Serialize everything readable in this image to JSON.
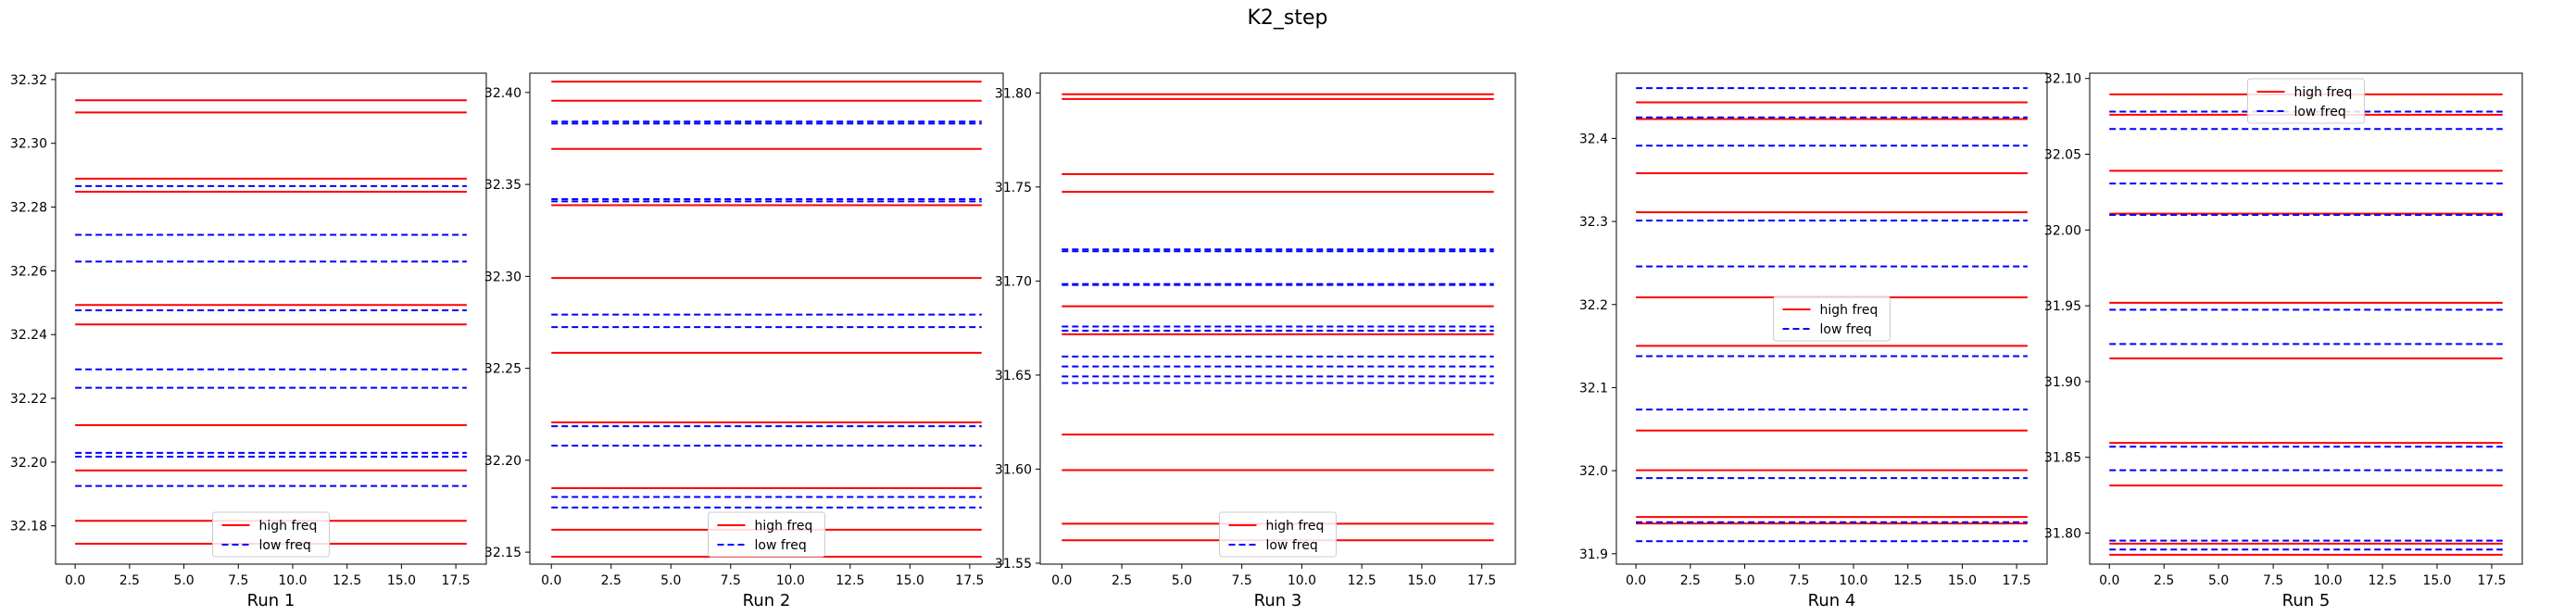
{
  "figure": {
    "title": "K2_step"
  },
  "chart_data": [
    {
      "type": "line",
      "xlabel": "Run 1",
      "xlim": [
        -0.9,
        18.9
      ],
      "ylim": [
        32.168,
        32.322
      ],
      "x_ticks": [
        0.0,
        2.5,
        5.0,
        7.5,
        10.0,
        12.5,
        15.0,
        17.5
      ],
      "x_tick_labels": [
        "0.0",
        "2.5",
        "5.0",
        "7.5",
        "10.0",
        "12.5",
        "15.0",
        "17.5"
      ],
      "y_ticks": [
        32.18,
        32.2,
        32.22,
        32.24,
        32.26,
        32.28,
        32.3,
        32.32
      ],
      "y_tick_labels": [
        "32.18",
        "32.20",
        "32.22",
        "32.24",
        "32.26",
        "32.28",
        "32.30",
        "32.32"
      ],
      "x_range": [
        0,
        18
      ],
      "legend": {
        "position": "lower center",
        "entries": [
          "high freq",
          "low freq"
        ]
      },
      "series": [
        {
          "name": "high freq",
          "color": "#ff0000",
          "style": "solid",
          "levels": [
            32.3135,
            32.3097,
            32.2889,
            32.2848,
            32.2493,
            32.2432,
            32.2116,
            32.1974,
            32.1816,
            32.1744
          ]
        },
        {
          "name": "low freq",
          "color": "#0000ff",
          "style": "dashed",
          "levels": [
            32.2866,
            32.2713,
            32.2629,
            32.2476,
            32.2291,
            32.2233,
            32.2029,
            32.2017,
            32.1925
          ]
        }
      ]
    },
    {
      "type": "line",
      "xlabel": "Run 2",
      "xlim": [
        -0.9,
        18.9
      ],
      "ylim": [
        32.1435,
        32.4105
      ],
      "x_ticks": [
        0.0,
        2.5,
        5.0,
        7.5,
        10.0,
        12.5,
        15.0,
        17.5
      ],
      "x_tick_labels": [
        "0.0",
        "2.5",
        "5.0",
        "7.5",
        "10.0",
        "12.5",
        "15.0",
        "17.5"
      ],
      "y_ticks": [
        32.15,
        32.2,
        32.25,
        32.3,
        32.35,
        32.4
      ],
      "y_tick_labels": [
        "32.15",
        "32.20",
        "32.25",
        "32.30",
        "32.35",
        "32.40"
      ],
      "x_range": [
        0,
        18
      ],
      "legend": {
        "position": "lower center",
        "entries": [
          "high freq",
          "low freq"
        ]
      },
      "series": [
        {
          "name": "high freq",
          "color": "#ff0000",
          "style": "solid",
          "levels": [
            32.4059,
            32.3955,
            32.3693,
            32.3387,
            32.2991,
            32.2584,
            32.2206,
            32.1848,
            32.1622,
            32.1475
          ]
        },
        {
          "name": "low freq",
          "color": "#0000ff",
          "style": "dashed",
          "levels": [
            32.3842,
            32.3831,
            32.342,
            32.3408,
            32.2792,
            32.2724,
            32.2185,
            32.2079,
            32.18,
            32.1743
          ]
        }
      ]
    },
    {
      "type": "line",
      "xlabel": "Run 3",
      "xlim": [
        -0.9,
        18.9
      ],
      "ylim": [
        31.5495,
        31.8105
      ],
      "x_ticks": [
        0.0,
        2.5,
        5.0,
        7.5,
        10.0,
        12.5,
        15.0,
        17.5
      ],
      "x_tick_labels": [
        "0.0",
        "2.5",
        "5.0",
        "7.5",
        "10.0",
        "12.5",
        "15.0",
        "17.5"
      ],
      "y_ticks": [
        31.55,
        31.6,
        31.65,
        31.7,
        31.75,
        31.8
      ],
      "y_tick_labels": [
        "31.55",
        "31.60",
        "31.65",
        "31.70",
        "31.75",
        "31.80"
      ],
      "x_range": [
        0,
        18
      ],
      "legend": {
        "position": "lower center",
        "entries": [
          "high freq",
          "low freq"
        ]
      },
      "series": [
        {
          "name": "high freq",
          "color": "#ff0000",
          "style": "solid",
          "levels": [
            31.7993,
            31.7968,
            31.7568,
            31.7474,
            31.6866,
            31.6717,
            31.6184,
            31.5995,
            31.571,
            31.5622
          ]
        },
        {
          "name": "low freq",
          "color": "#0000ff",
          "style": "dashed",
          "levels": [
            31.7168,
            31.7158,
            31.6984,
            31.6979,
            31.6758,
            31.6736,
            31.6599,
            31.6546,
            31.6493,
            31.6458
          ]
        }
      ]
    },
    {
      "type": "line",
      "xlabel": "Run 4",
      "xlim": [
        -0.9,
        18.9
      ],
      "ylim": [
        31.8875,
        32.4785
      ],
      "x_ticks": [
        0.0,
        2.5,
        5.0,
        7.5,
        10.0,
        12.5,
        15.0,
        17.5
      ],
      "x_tick_labels": [
        "0.0",
        "2.5",
        "5.0",
        "7.5",
        "10.0",
        "12.5",
        "15.0",
        "17.5"
      ],
      "y_ticks": [
        31.9,
        32.0,
        32.1,
        32.2,
        32.3,
        32.4
      ],
      "y_tick_labels": [
        "31.9",
        "32.0",
        "32.1",
        "32.2",
        "32.3",
        "32.4"
      ],
      "x_range": [
        0,
        18
      ],
      "legend": {
        "position": "center",
        "entries": [
          "high freq",
          "low freq"
        ]
      },
      "series": [
        {
          "name": "high freq",
          "color": "#ff0000",
          "style": "solid",
          "levels": [
            32.4434,
            32.4233,
            32.3581,
            32.3111,
            32.2087,
            32.1503,
            32.0484,
            32.0006,
            31.9442,
            31.9364
          ]
        },
        {
          "name": "low freq",
          "color": "#0000ff",
          "style": "dashed",
          "levels": [
            32.4605,
            32.4252,
            32.3913,
            32.301,
            32.2459,
            32.1378,
            32.0736,
            31.991,
            31.9379,
            31.9151
          ]
        }
      ]
    },
    {
      "type": "line",
      "xlabel": "Run 5",
      "xlim": [
        -0.9,
        18.9
      ],
      "ylim": [
        31.7795,
        32.1035
      ],
      "x_ticks": [
        0.0,
        2.5,
        5.0,
        7.5,
        10.0,
        12.5,
        15.0,
        17.5
      ],
      "x_tick_labels": [
        "0.0",
        "2.5",
        "5.0",
        "7.5",
        "10.0",
        "12.5",
        "15.0",
        "17.5"
      ],
      "y_ticks": [
        31.8,
        31.85,
        31.9,
        31.95,
        32.0,
        32.05,
        32.1
      ],
      "y_tick_labels": [
        "31.80",
        "31.85",
        "31.90",
        "31.95",
        "32.00",
        "32.05",
        "32.10"
      ],
      "x_range": [
        0,
        18
      ],
      "legend": {
        "position": "upper center",
        "entries": [
          "high freq",
          "low freq"
        ]
      },
      "series": [
        {
          "name": "high freq",
          "color": "#ff0000",
          "style": "solid",
          "levels": [
            32.0895,
            32.0761,
            32.0391,
            32.0108,
            31.952,
            31.9153,
            31.8595,
            31.8314,
            31.793,
            31.7857
          ]
        },
        {
          "name": "low freq",
          "color": "#0000ff",
          "style": "dashed",
          "levels": [
            32.0781,
            32.0667,
            32.0307,
            32.01,
            31.9474,
            31.9248,
            31.857,
            31.8415,
            31.795,
            31.7891
          ]
        }
      ]
    }
  ]
}
